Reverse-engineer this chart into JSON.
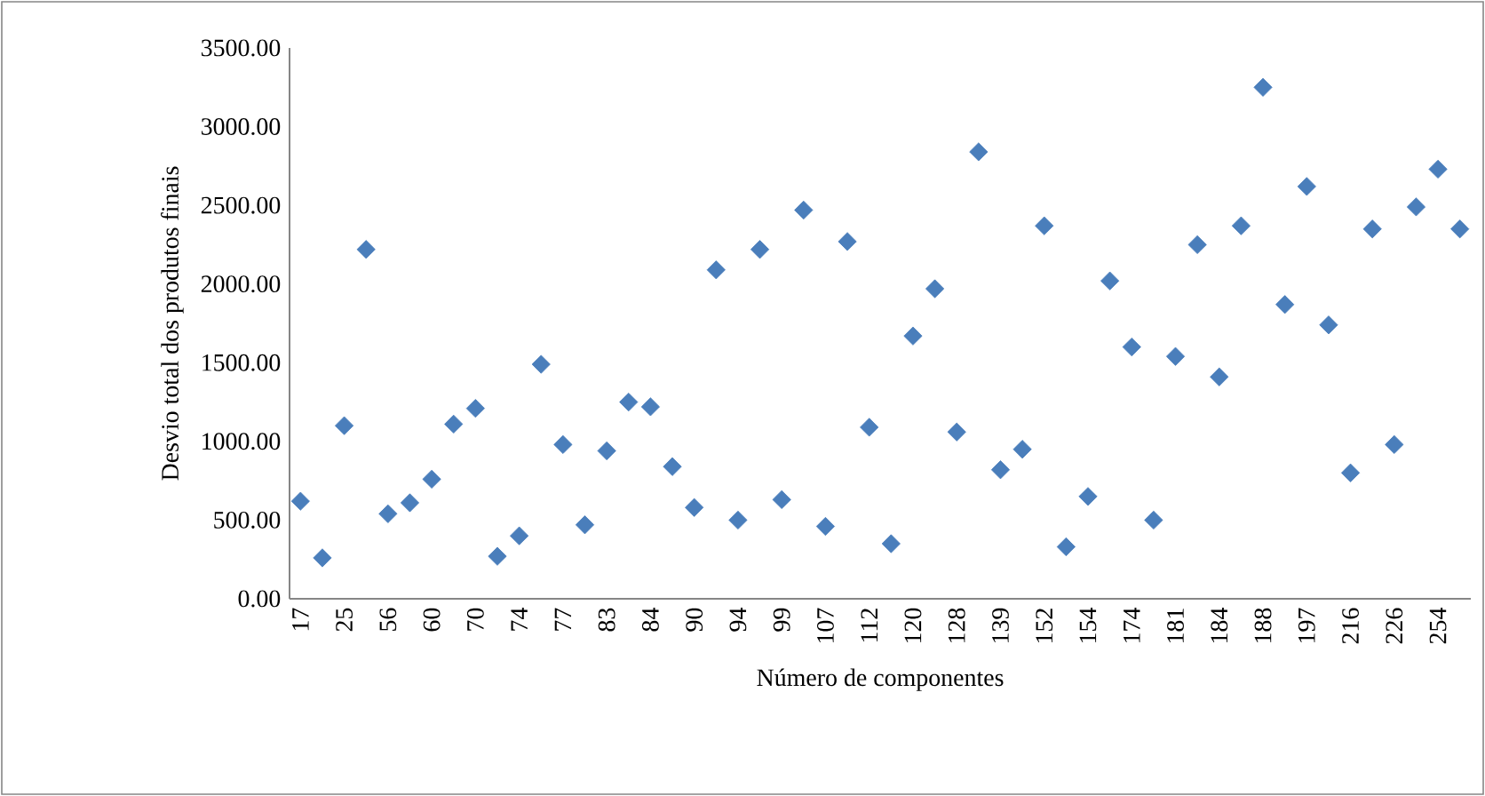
{
  "chart_data": {
    "type": "scatter",
    "xlabel": "Número de componentes",
    "ylabel": "Desvio total dos produtos finais",
    "categories": [
      "17",
      null,
      "25",
      null,
      "56",
      null,
      "60",
      null,
      "70",
      null,
      "74",
      null,
      "77",
      null,
      "83",
      null,
      "84",
      null,
      "90",
      null,
      "94",
      null,
      "99",
      null,
      "107",
      null,
      "112",
      null,
      "120",
      null,
      "128",
      null,
      "139",
      null,
      "152",
      null,
      "154",
      null,
      "174",
      null,
      "181",
      null,
      "184",
      null,
      "188",
      null,
      "197",
      null,
      "216",
      null,
      "226",
      null,
      "254",
      null
    ],
    "values": [
      620,
      260,
      1100,
      2220,
      540,
      610,
      760,
      1110,
      1210,
      270,
      400,
      1490,
      980,
      470,
      940,
      1250,
      1220,
      840,
      580,
      2090,
      500,
      2220,
      630,
      2470,
      460,
      2270,
      1090,
      350,
      1670,
      1970,
      1060,
      2840,
      820,
      950,
      2370,
      330,
      650,
      2020,
      1600,
      500,
      1540,
      2250,
      1410,
      2370,
      3250,
      1870,
      2620,
      1740,
      800,
      2350,
      980,
      2490,
      2730,
      2350
    ],
    "color": "#4a7ebb",
    "marker": "diamond",
    "ylim": [
      0,
      3500
    ],
    "yticks": [
      {
        "value": 0,
        "label": "0.00"
      },
      {
        "value": 500,
        "label": "500.00"
      },
      {
        "value": 1000,
        "label": "1000.00"
      },
      {
        "value": 1500,
        "label": "1500.00"
      },
      {
        "value": 2000,
        "label": "2000.00"
      },
      {
        "value": 2500,
        "label": "2500.00"
      },
      {
        "value": 3000,
        "label": "3000.00"
      },
      {
        "value": 3500,
        "label": "3500.00"
      }
    ]
  }
}
